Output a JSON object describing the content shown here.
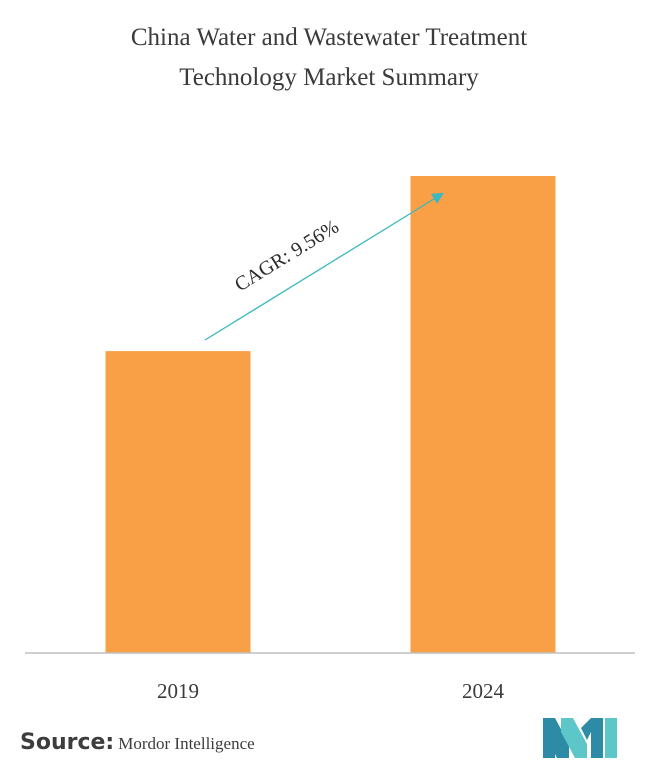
{
  "chart_data": {
    "type": "bar",
    "title_lines": [
      "China Water and Wastewater Treatment",
      "Technology Market Summary"
    ],
    "categories": [
      "2019",
      "2024"
    ],
    "values": [
      1.0,
      1.58
    ],
    "annotation": "CAGR: 9.56%",
    "bar_color": "#F9A046",
    "arrow_color": "#3CB8BE",
    "axis_color": "#BFBFBF",
    "grid": false,
    "xlabel": "",
    "ylabel": ""
  },
  "source": {
    "label": "Source:",
    "value": "Mordor Intelligence"
  },
  "logo": {
    "icon": "mordor-intelligence-logo-icon",
    "colors": [
      "#2E8BA6",
      "#5CC6C9"
    ]
  }
}
